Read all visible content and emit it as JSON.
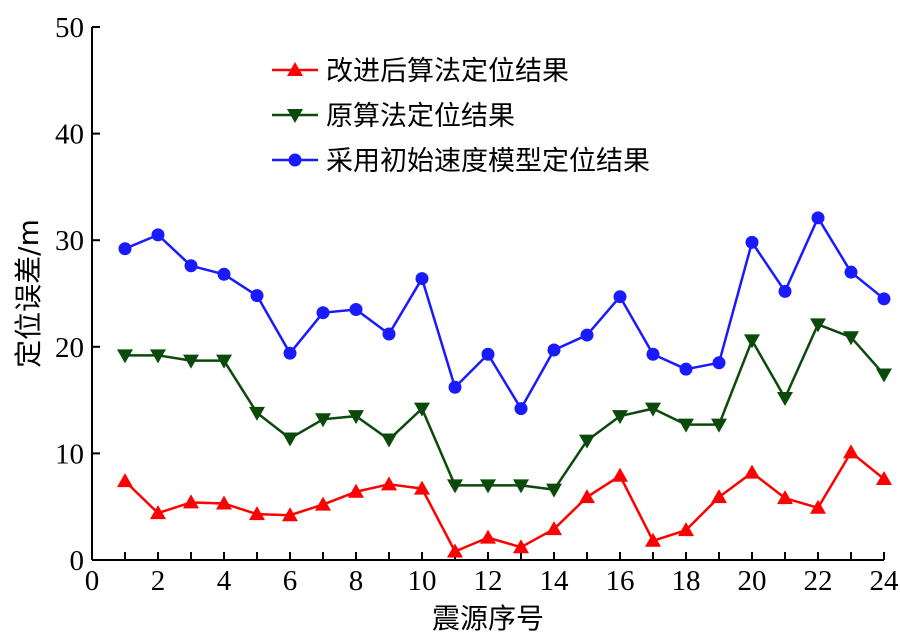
{
  "chart_data": {
    "type": "line",
    "title": "",
    "xlabel": "震源序号",
    "ylabel": "定位误差/m",
    "xlim": [
      0,
      24
    ],
    "ylim": [
      0,
      50
    ],
    "xticks": [
      0,
      2,
      4,
      6,
      8,
      10,
      12,
      14,
      16,
      18,
      20,
      22,
      24
    ],
    "yticks": [
      0,
      10,
      20,
      30,
      40,
      50
    ],
    "grid": false,
    "legend_position": "top-center",
    "x": [
      1,
      2,
      3,
      4,
      5,
      6,
      7,
      8,
      9,
      10,
      11,
      12,
      13,
      14,
      15,
      16,
      17,
      18,
      19,
      20,
      21,
      22,
      23,
      24
    ],
    "series": [
      {
        "name": "改进后算法定位结果",
        "color": "#ff0000",
        "marker": "triangle-up",
        "values": [
          7.4,
          4.4,
          5.4,
          5.3,
          4.3,
          4.2,
          5.2,
          6.4,
          7.1,
          6.7,
          0.8,
          2.1,
          1.2,
          2.9,
          5.9,
          7.9,
          1.8,
          2.8,
          5.9,
          8.2,
          5.8,
          4.9,
          10.1,
          7.6
        ]
      },
      {
        "name": "原算法定位结果",
        "color": "#0b4a0b",
        "marker": "triangle-down",
        "values": [
          19.2,
          19.2,
          18.7,
          18.7,
          13.8,
          11.4,
          13.2,
          13.5,
          11.3,
          14.2,
          7.0,
          7.0,
          7.0,
          6.6,
          11.2,
          13.5,
          14.2,
          12.7,
          12.7,
          20.6,
          15.2,
          22.1,
          20.9,
          17.4
        ]
      },
      {
        "name": "采用初始速度模型定位结果",
        "color": "#1a1aff",
        "marker": "circle",
        "values": [
          29.2,
          30.5,
          27.6,
          26.8,
          24.8,
          19.4,
          23.2,
          23.5,
          21.2,
          26.4,
          16.2,
          19.3,
          14.2,
          19.7,
          21.1,
          24.7,
          19.3,
          17.9,
          18.5,
          29.8,
          25.2,
          32.1,
          27.0,
          24.5
        ]
      }
    ]
  }
}
